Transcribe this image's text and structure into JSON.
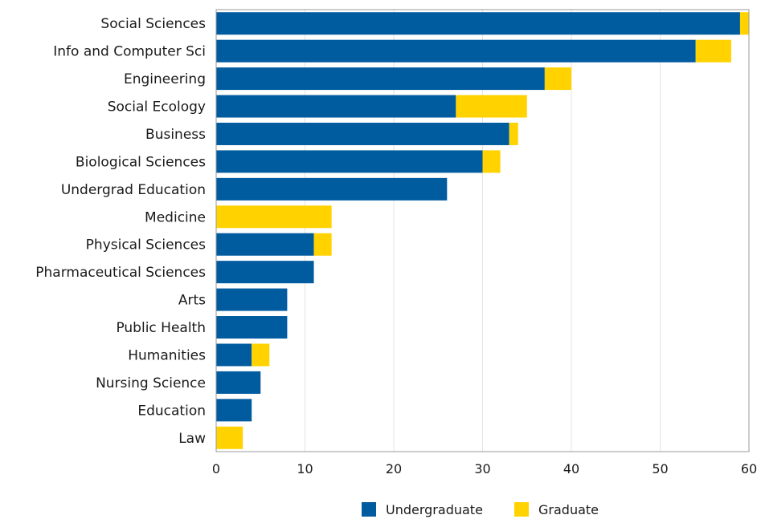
{
  "chart_data": {
    "type": "bar",
    "orientation": "horizontal",
    "stacked": true,
    "categories": [
      "Social Sciences",
      "Info and Computer Sci",
      "Engineering",
      "Social Ecology",
      "Business",
      "Biological Sciences",
      "Undergrad Education",
      "Medicine",
      "Physical Sciences",
      "Pharmaceutical Sciences",
      "Arts",
      "Public Health",
      "Humanities",
      "Nursing Science",
      "Education",
      "Law"
    ],
    "series": [
      {
        "name": "Undergraduate",
        "color": "#005b9f",
        "values": [
          59,
          54,
          37,
          27,
          33,
          30,
          26,
          0,
          11,
          11,
          8,
          8,
          4,
          5,
          4,
          0
        ]
      },
      {
        "name": "Graduate",
        "color": "#ffd200",
        "values": [
          1,
          4,
          3,
          8,
          1,
          2,
          0,
          13,
          2,
          0,
          0,
          0,
          2,
          0,
          0,
          3
        ]
      }
    ],
    "title": "",
    "xlabel": "",
    "ylabel": "",
    "xlim": [
      0,
      60
    ],
    "xticks": [
      0,
      10,
      20,
      30,
      40,
      50,
      60
    ],
    "grid": true,
    "legend": "bottom-center"
  }
}
